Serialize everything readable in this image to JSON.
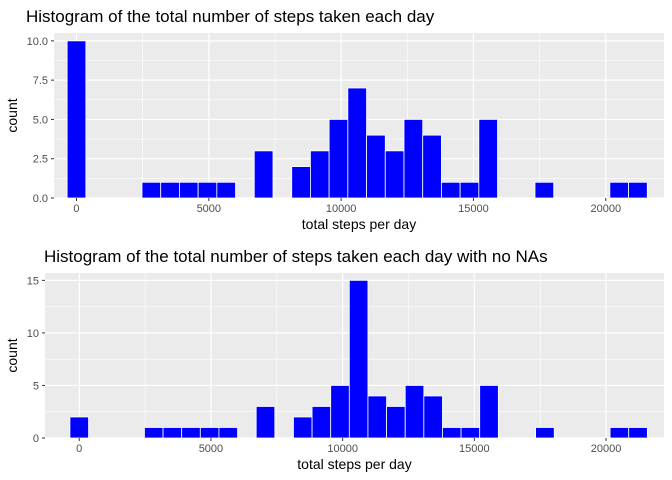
{
  "chart_data": [
    {
      "type": "bar",
      "title": "Histogram of the total number of steps taken each day",
      "xlabel": "total steps per day",
      "ylabel": "count",
      "xlim": [
        -850,
        22200
      ],
      "ylim": [
        0,
        10.5
      ],
      "x_ticks": [
        0,
        5000,
        10000,
        15000,
        20000
      ],
      "y_ticks": [
        0,
        2.5,
        5,
        7.5,
        10
      ],
      "y_tick_labels": [
        "0.0",
        "2.5",
        "5.0",
        "7.5",
        "10.0"
      ],
      "grid": true,
      "bar_color": "#0000ff",
      "bar_edge_color": "#ffffff",
      "bin_width": 707,
      "bin_centers": [
        0,
        2829,
        3536,
        4243,
        4950,
        5657,
        7071,
        8486,
        9193,
        9900,
        10607,
        11314,
        12021,
        12729,
        13436,
        14143,
        14850,
        15557,
        17679,
        20507,
        21214
      ],
      "counts": [
        10,
        1,
        1,
        1,
        1,
        1,
        3,
        2,
        3,
        5,
        7,
        4,
        3,
        5,
        4,
        1,
        1,
        5,
        1,
        1,
        1
      ]
    },
    {
      "type": "bar",
      "title": "Histogram of the total number of steps taken each day with no NAs",
      "xlabel": "total steps per day",
      "ylabel": "count",
      "xlim": [
        -1300,
        22200
      ],
      "ylim": [
        0,
        15.7
      ],
      "x_ticks": [
        0,
        5000,
        10000,
        15000,
        20000
      ],
      "y_ticks": [
        0,
        5,
        10,
        15
      ],
      "y_tick_labels": [
        "0",
        "5",
        "10",
        "15"
      ],
      "grid": true,
      "bar_color": "#0000ff",
      "bar_edge_color": "#ffffff",
      "bin_width": 707,
      "bin_centers": [
        0,
        2829,
        3536,
        4243,
        4950,
        5657,
        7071,
        8486,
        9193,
        9900,
        10607,
        11314,
        12021,
        12729,
        13436,
        14143,
        14850,
        15557,
        17679,
        20507,
        21214
      ],
      "counts": [
        2,
        1,
        1,
        1,
        1,
        1,
        3,
        2,
        3,
        5,
        15,
        4,
        3,
        5,
        4,
        1,
        1,
        5,
        1,
        1,
        1
      ]
    }
  ]
}
